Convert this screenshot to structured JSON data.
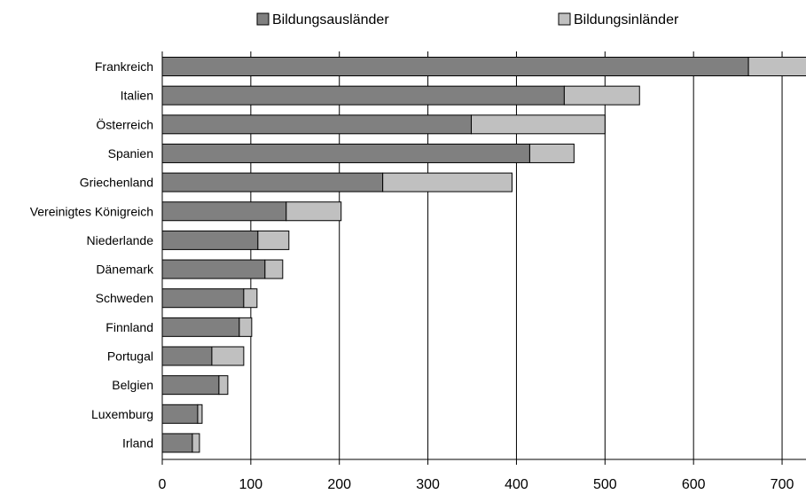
{
  "chart_data": {
    "type": "bar",
    "orientation": "horizontal",
    "stacked": true,
    "categories": [
      "Frankreich",
      "Italien",
      "Österreich",
      "Spanien",
      "Griechenland",
      "Vereinigtes Königreich",
      "Niederlande",
      "Dänemark",
      "Schweden",
      "Finnland",
      "Portugal",
      "Belgien",
      "Luxemburg",
      "Irland"
    ],
    "series": [
      {
        "name": "Bildungsausländer",
        "color": "#808080",
        "values": [
          662,
          454,
          349,
          415,
          249,
          140,
          108,
          116,
          92,
          87,
          56,
          64,
          40,
          34
        ]
      },
      {
        "name": "Bildungsinländer",
        "color": "#c0c0c0",
        "values": [
          66,
          85,
          151,
          50,
          146,
          62,
          35,
          20,
          15,
          14,
          36,
          10,
          5,
          8
        ]
      }
    ],
    "xlim": [
      0,
      727
    ],
    "xticks": [
      0,
      100,
      200,
      300,
      400,
      500,
      600,
      700
    ],
    "grid": "vertical",
    "legend": "top"
  }
}
